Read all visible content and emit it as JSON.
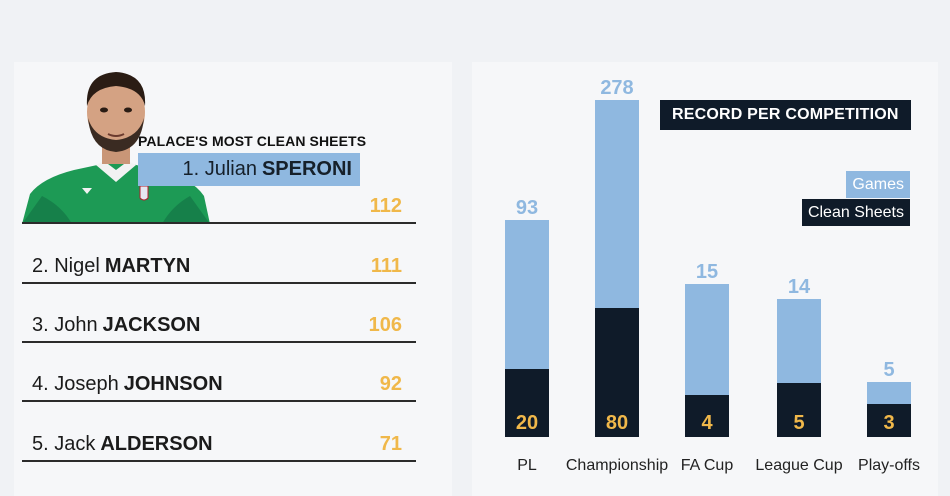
{
  "ranking": {
    "title": "PALACE'S MOST CLEAN SHEETS",
    "rows": [
      {
        "first": "1. Julian",
        "last": "SPERONI",
        "value": "112"
      },
      {
        "first": "2. Nigel",
        "last": "MARTYN",
        "value": "111"
      },
      {
        "first": "3. John",
        "last": "JACKSON",
        "value": "106"
      },
      {
        "first": "4. Joseph",
        "last": "JOHNSON",
        "value": "92"
      },
      {
        "first": "5. Jack",
        "last": "ALDERSON",
        "value": "71"
      }
    ]
  },
  "chart_data": {
    "type": "bar",
    "title": "RECORD PER COMPETITION",
    "categories": [
      "PL",
      "Championship",
      "FA Cup",
      "League Cup",
      "Play-offs"
    ],
    "series": [
      {
        "name": "Games",
        "values": [
          93,
          278,
          15,
          14,
          5
        ],
        "color": "#8fb8e0"
      },
      {
        "name": "Clean Sheets",
        "values": [
          20,
          80,
          4,
          5,
          3
        ],
        "color": "#0f1b29"
      }
    ],
    "label_colors": {
      "games": "#8fb8e0",
      "clean_sheets": "#f0b84a",
      "category": "#222222"
    }
  }
}
